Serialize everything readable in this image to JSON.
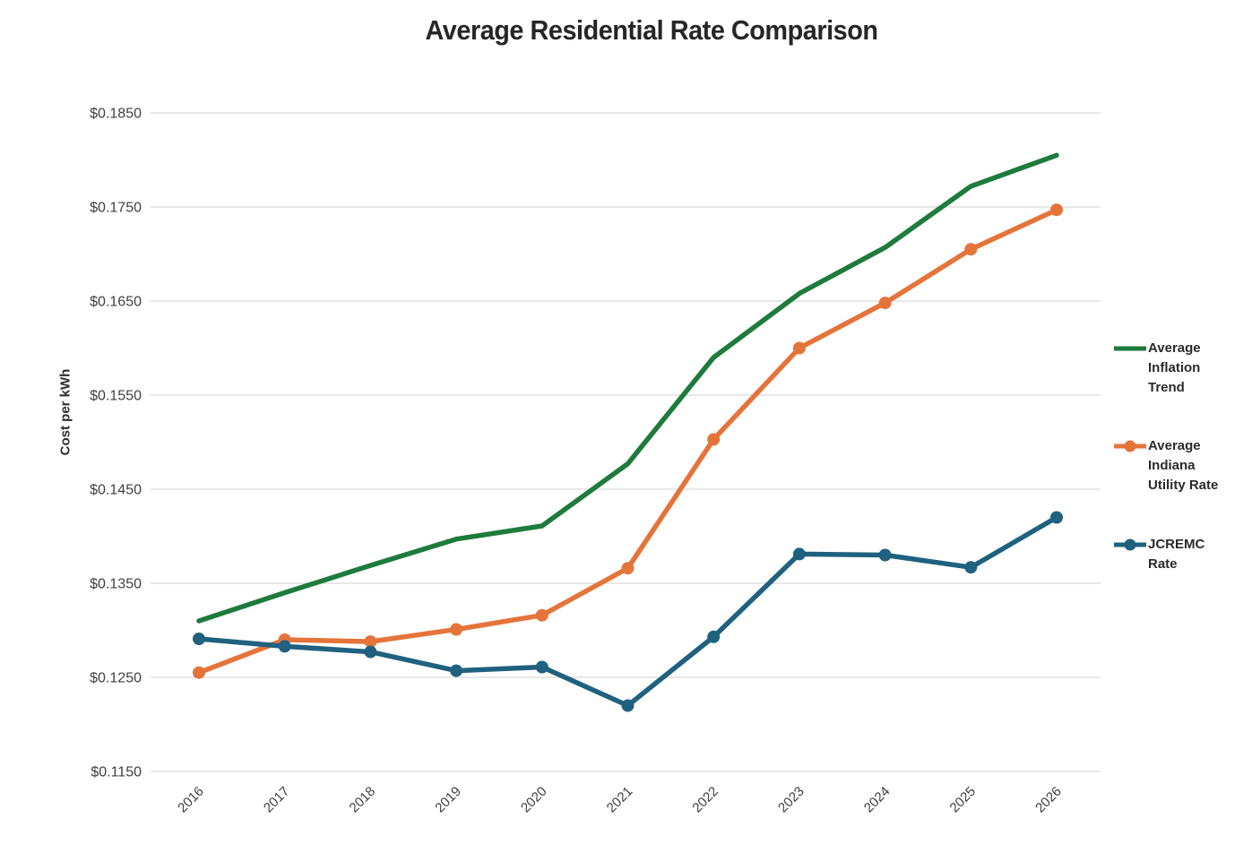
{
  "title": "Average Residential Rate Comparison",
  "chart_data": {
    "type": "line",
    "title": "Average Residential Rate Comparison",
    "xlabel": "",
    "ylabel": "Cost per kWh",
    "x": [
      2016,
      2017,
      2018,
      2019,
      2020,
      2021,
      2022,
      2023,
      2024,
      2025,
      2026
    ],
    "series": [
      {
        "name": "Average Inflation Trend",
        "color": "#1E7B3C",
        "marker": false,
        "values": [
          0.131,
          0.134,
          0.1369,
          0.1397,
          0.1411,
          0.1477,
          0.159,
          0.1658,
          0.1707,
          0.1772,
          0.1805
        ]
      },
      {
        "name": "Average Indiana Utility Rate",
        "color": "#E5743A",
        "marker": true,
        "values": [
          0.1255,
          0.129,
          0.1288,
          0.1301,
          0.1316,
          0.1366,
          0.1503,
          0.16,
          0.1648,
          0.1705,
          0.1747
        ]
      },
      {
        "name": "JCREMC Rate",
        "color": "#1F617F",
        "marker": true,
        "values": [
          0.1291,
          0.1283,
          0.1277,
          0.1257,
          0.1261,
          0.122,
          0.1293,
          0.1381,
          0.138,
          0.1367,
          0.142
        ]
      }
    ],
    "ylim": [
      0.115,
      0.185
    ],
    "ytick_step": 0.01,
    "ytick_labels": [
      "$0.1850",
      "$0.1750",
      "$0.1650",
      "$0.1550",
      "$0.1450",
      "$0.1350",
      "$0.1250",
      "$0.1150"
    ],
    "xtick_labels": [
      "2016",
      "2017",
      "2018",
      "2019",
      "2020",
      "2021",
      "2022",
      "2023",
      "2024",
      "2025",
      "2026"
    ],
    "grid": true,
    "legend_position": "right"
  },
  "colors": {
    "grid": "#D9D9D9",
    "axis_text": "#3F3F3F",
    "title_text": "#262626",
    "background": "#FFFFFF"
  }
}
